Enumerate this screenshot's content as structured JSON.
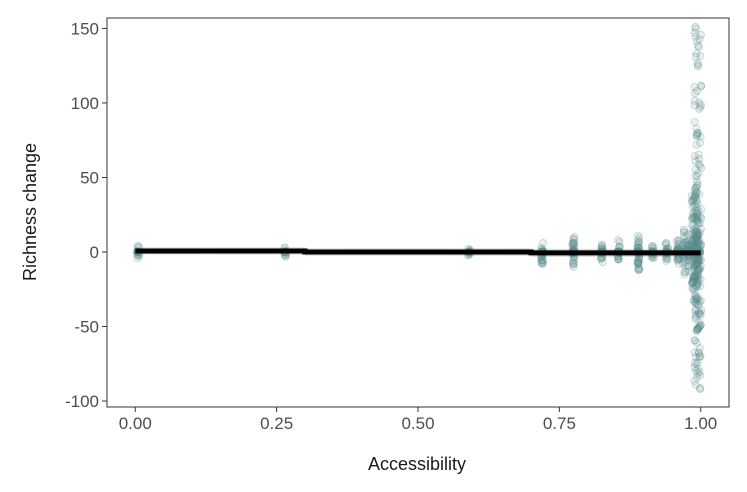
{
  "chart_data": {
    "type": "scatter",
    "title": "",
    "xlabel": "Accessibility",
    "ylabel": "Richness change",
    "xlim": [
      -0.05,
      1.05
    ],
    "ylim": [
      -104,
      157
    ],
    "x_ticks": [
      0.0,
      0.25,
      0.5,
      0.75,
      1.0
    ],
    "x_tick_labels": [
      "0.00",
      "0.25",
      "0.50",
      "0.75",
      "1.00"
    ],
    "y_ticks": [
      150,
      100,
      50,
      0,
      -50,
      -100
    ],
    "y_tick_labels": [
      "150",
      "100",
      "50",
      "0",
      "-50",
      "-100"
    ],
    "grid": false,
    "legend": "none",
    "point_color": "#5b8f8c",
    "fit_color": "#000000",
    "ci_color": "#d9d9d9",
    "trend_line": {
      "x": [
        0.0,
        0.3,
        0.3,
        0.7,
        0.7,
        1.0
      ],
      "y": [
        0.7,
        0.7,
        0.0,
        0.0,
        -0.6,
        -0.6
      ]
    },
    "point_clusters": [
      {
        "x": 0.005,
        "ymin": -4,
        "ymax": 4
      },
      {
        "x": 0.265,
        "ymin": -3,
        "ymax": 3
      },
      {
        "x": 0.59,
        "ymin": -2,
        "ymax": 2
      },
      {
        "x": 0.72,
        "ymin": -8,
        "ymax": 6
      },
      {
        "x": 0.775,
        "ymin": -10,
        "ymax": 10
      },
      {
        "x": 0.825,
        "ymin": -7,
        "ymax": 5
      },
      {
        "x": 0.855,
        "ymin": -5,
        "ymax": 8
      },
      {
        "x": 0.89,
        "ymin": -12,
        "ymax": 11
      },
      {
        "x": 0.915,
        "ymin": -4,
        "ymax": 4
      },
      {
        "x": 0.94,
        "ymin": -6,
        "ymax": 6
      },
      {
        "x": 0.96,
        "ymin": -8,
        "ymax": 8
      },
      {
        "x": 0.975,
        "ymin": -15,
        "ymax": 15
      },
      {
        "x": 0.99,
        "ymin": -35,
        "ymax": 40
      },
      {
        "x": 0.995,
        "ymin": -92,
        "ymax": 151
      }
    ]
  }
}
